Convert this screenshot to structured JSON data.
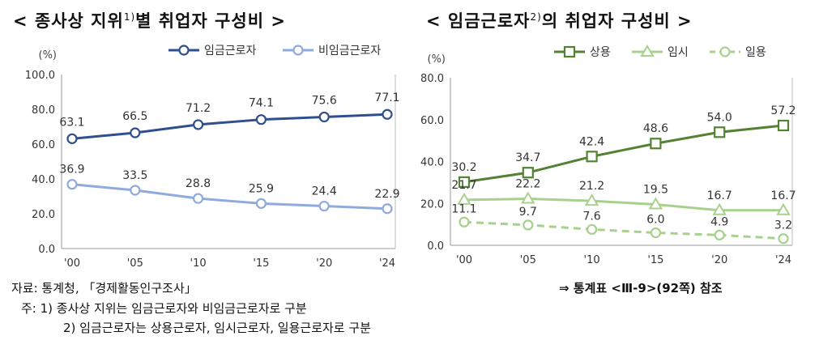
{
  "titles": {
    "left_main": "< 종사상 지위",
    "left_sup": "1)",
    "left_rest": "별 취업자 구성비 >",
    "right_main": "< 임금근로자",
    "right_sup": "2)",
    "right_rest": "의 취업자 구성비 >"
  },
  "footer": {
    "source": "자료: 통계청, 「경제활동인구조사」",
    "reference": "⇒ 통계표 <Ⅲ-9>(92쪽) 참조",
    "note1": "주: 1) 종사상 지위는 임금근로자와 비임금근로자로 구분",
    "note2": "2) 임금근로자는 상용근로자, 임시근로자, 일용근로자로 구분"
  },
  "chart_data": [
    {
      "type": "line",
      "unit": "(%)",
      "x": [
        "'00",
        "'05",
        "'10",
        "'15",
        "'20",
        "'24"
      ],
      "ylim": [
        0,
        100
      ],
      "yticks": [
        "0.0",
        "20.0",
        "40.0",
        "60.0",
        "80.0",
        "100.0"
      ],
      "legend_position": "top-right",
      "series": [
        {
          "name": "임금근로자",
          "values": [
            63.1,
            66.5,
            71.2,
            74.1,
            75.6,
            77.1
          ],
          "labels": [
            "63.1",
            "66.5",
            "71.2",
            "74.1",
            "75.6",
            "77.1"
          ],
          "color": "#2f4f8f",
          "marker": "circle",
          "dashed": false
        },
        {
          "name": "비임금근로자",
          "values": [
            36.9,
            33.5,
            28.8,
            25.9,
            24.4,
            22.9
          ],
          "labels": [
            "36.9",
            "33.5",
            "28.8",
            "25.9",
            "24.4",
            "22.9"
          ],
          "color": "#8faadc",
          "marker": "circle",
          "dashed": false
        }
      ]
    },
    {
      "type": "line",
      "unit": "(%)",
      "x": [
        "'00",
        "'05",
        "'10",
        "'15",
        "'20",
        "'24"
      ],
      "ylim": [
        0,
        80
      ],
      "yticks": [
        "0.0",
        "20.0",
        "40.0",
        "60.0",
        "80.0"
      ],
      "legend_position": "top-right",
      "series": [
        {
          "name": "상용",
          "values": [
            30.2,
            34.7,
            42.4,
            48.6,
            54.0,
            57.2
          ],
          "labels": [
            "30.2",
            "34.7",
            "42.4",
            "48.6",
            "54.0",
            "57.2"
          ],
          "color": "#548235",
          "marker": "square",
          "dashed": false
        },
        {
          "name": "임시",
          "values": [
            21.7,
            22.2,
            21.2,
            19.5,
            16.7,
            16.7
          ],
          "labels": [
            "21.7",
            "22.2",
            "21.2",
            "19.5",
            "16.7",
            "16.7"
          ],
          "color": "#a9d18e",
          "marker": "triangle",
          "dashed": false
        },
        {
          "name": "일용",
          "values": [
            11.1,
            9.7,
            7.6,
            6.0,
            4.9,
            3.2
          ],
          "labels": [
            "11.1",
            "9.7",
            "7.6",
            "6.0",
            "4.9",
            "3.2"
          ],
          "color": "#a9d18e",
          "marker": "circle",
          "dashed": true
        }
      ]
    }
  ]
}
